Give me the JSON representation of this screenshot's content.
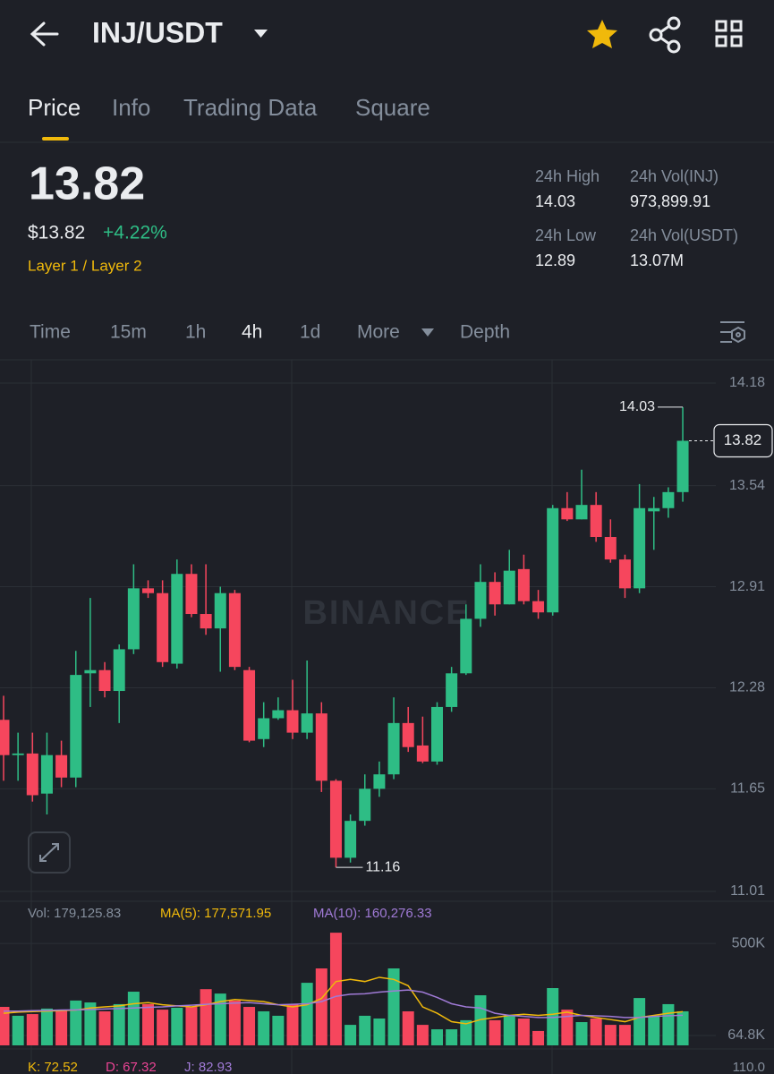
{
  "header": {
    "pair": "INJ/USDT"
  },
  "tabs": [
    "Price",
    "Info",
    "Trading Data",
    "Square"
  ],
  "price": {
    "last": "13.82",
    "usd": "$13.82",
    "change": "+4.22%",
    "tag": "Layer 1 / Layer 2"
  },
  "stats": [
    {
      "label": "24h High",
      "value": "14.03"
    },
    {
      "label": "24h Vol(INJ)",
      "value": "973,899.91"
    },
    {
      "label": "24h Low",
      "value": "12.89"
    },
    {
      "label": "24h Vol(USDT)",
      "value": "13.07M"
    }
  ],
  "intervals": [
    "Time",
    "15m",
    "1h",
    "4h",
    "1d",
    "More",
    "Depth"
  ],
  "chart_data": [
    {
      "type": "candlestick",
      "watermark": "BINANCE",
      "up_color": "#2ebd85",
      "down_color": "#f6465d",
      "open": [
        12.08,
        11.86,
        11.87,
        11.62,
        11.86,
        11.72,
        12.37,
        12.39,
        12.26,
        12.52,
        12.9,
        12.87,
        12.43,
        12.99,
        12.74,
        12.65,
        12.87,
        12.39,
        11.96,
        12.09,
        12.14,
        12.0,
        12.12,
        11.7,
        11.22,
        11.45,
        11.65,
        11.74,
        12.06,
        11.92,
        11.82,
        12.16,
        12.37,
        12.71,
        12.94,
        12.8,
        13.02,
        12.82,
        12.75,
        13.4,
        13.33,
        13.42,
        13.22,
        13.08,
        12.9,
        13.38,
        13.4,
        13.5
      ],
      "high": [
        12.23,
        12.0,
        12.0,
        12.0,
        11.95,
        12.51,
        12.84,
        12.44,
        12.55,
        13.05,
        12.95,
        12.95,
        13.08,
        13.05,
        13.05,
        12.91,
        12.89,
        12.41,
        12.19,
        12.22,
        12.33,
        12.45,
        12.19,
        11.71,
        11.49,
        11.74,
        11.82,
        12.22,
        12.16,
        12.1,
        12.19,
        12.41,
        12.8,
        13.05,
        13.0,
        13.14,
        13.11,
        12.89,
        13.42,
        13.5,
        13.64,
        13.5,
        13.33,
        13.11,
        13.55,
        13.47,
        13.53,
        14.03
      ],
      "low": [
        11.7,
        11.7,
        11.57,
        11.49,
        11.66,
        11.66,
        12.16,
        12.22,
        12.06,
        12.49,
        12.84,
        12.41,
        12.4,
        12.72,
        12.61,
        12.38,
        12.39,
        11.94,
        11.91,
        12.08,
        11.96,
        11.96,
        11.63,
        11.16,
        11.19,
        11.42,
        11.6,
        11.71,
        11.88,
        11.81,
        11.8,
        12.13,
        12.36,
        12.66,
        12.73,
        12.8,
        12.8,
        12.71,
        12.73,
        13.32,
        13.33,
        13.19,
        13.06,
        12.84,
        12.87,
        13.14,
        13.34,
        13.44
      ],
      "close": [
        11.86,
        11.87,
        11.61,
        11.86,
        11.72,
        12.36,
        12.39,
        12.26,
        12.52,
        12.9,
        12.87,
        12.44,
        12.99,
        12.74,
        12.65,
        12.87,
        12.41,
        11.95,
        12.09,
        12.14,
        12.0,
        12.12,
        11.7,
        11.22,
        11.45,
        11.65,
        11.74,
        12.06,
        11.91,
        11.82,
        12.16,
        12.37,
        12.71,
        12.94,
        12.8,
        13.01,
        12.82,
        12.75,
        13.4,
        13.33,
        13.42,
        13.22,
        13.08,
        12.9,
        13.4,
        13.4,
        13.5,
        13.82
      ],
      "ylim": [
        11.01,
        14.18
      ],
      "yticks": [
        14.18,
        13.54,
        12.91,
        12.28,
        11.65,
        11.01
      ],
      "grid": true,
      "last_price": 13.82,
      "high_label": 14.03,
      "low_label": 11.16
    },
    {
      "type": "volume",
      "name": "Vol: 179,125.83",
      "values": [
        200000,
        158000,
        166000,
        192000,
        187000,
        230000,
        221000,
        179000,
        213000,
        272000,
        213000,
        187000,
        196000,
        200000,
        284000,
        263000,
        230000,
        200000,
        179000,
        158000,
        213000,
        314000,
        382000,
        551000,
        115000,
        158000,
        145000,
        382000,
        179000,
        115000,
        94000,
        94000,
        137000,
        255000,
        137000,
        158000,
        145000,
        86000,
        289000,
        187000,
        128000,
        145000,
        115000,
        115000,
        242000,
        158000,
        213000,
        179125.83
      ],
      "series": [
        {
          "name": "MA(5): 177,571.95",
          "color": "#f0b90b",
          "values": [
            170000,
            175000,
            178000,
            180000,
            182000,
            185000,
            195000,
            200000,
            205000,
            215000,
            220000,
            210000,
            205000,
            200000,
            210000,
            225000,
            235000,
            230000,
            225000,
            210000,
            200000,
            210000,
            240000,
            320000,
            330000,
            320000,
            340000,
            330000,
            300000,
            200000,
            170000,
            130000,
            120000,
            140000,
            150000,
            160000,
            165000,
            160000,
            165000,
            175000,
            160000,
            150000,
            140000,
            130000,
            150000,
            160000,
            170000,
            177571.95
          ]
        },
        {
          "name": "MA(10): 160,276.33",
          "color": "#a07ad6",
          "values": [
            180000,
            180000,
            182000,
            183000,
            185000,
            186000,
            188000,
            190000,
            192000,
            195000,
            198000,
            200000,
            205000,
            208000,
            212000,
            215000,
            218000,
            220000,
            215000,
            210000,
            212000,
            215000,
            225000,
            250000,
            260000,
            262000,
            270000,
            275000,
            280000,
            270000,
            245000,
            215000,
            200000,
            195000,
            170000,
            160000,
            155000,
            150000,
            150000,
            155000,
            160000,
            158000,
            155000,
            150000,
            150000,
            155000,
            158000,
            160276.33
          ]
        }
      ],
      "ylim": [
        18000,
        560000
      ],
      "yticks": [
        {
          "value": 500000,
          "label": "500K"
        },
        {
          "value": 64800,
          "label": "64.8K"
        }
      ]
    }
  ],
  "kdj": {
    "items": [
      "K: 72.52",
      "D: 67.32",
      "J: 82.93"
    ],
    "axis_label": "110.0"
  }
}
